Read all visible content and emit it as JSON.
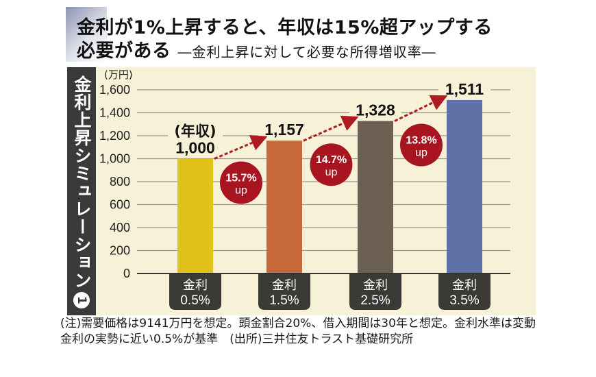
{
  "header": {
    "title_main_line1": "金利が1%上昇すると、年収は15%超アップする",
    "title_main_line2": "必要がある",
    "title_sub": "―金利上昇に対して必要な所得増収率―"
  },
  "side_label": {
    "text": "金利上昇シミュレーション",
    "number": "1"
  },
  "chart_data": {
    "type": "bar",
    "title": "金利上昇シミュレーション",
    "ylabel": "(万円)",
    "ylim": [
      0,
      1600
    ],
    "yticks": [
      0,
      200,
      400,
      600,
      800,
      1000,
      1200,
      1400,
      1600
    ],
    "ytick_labels": [
      "0",
      "200",
      "400",
      "600",
      "800",
      "1,000",
      "1,200",
      "1,400",
      "1,600"
    ],
    "grid": true,
    "categories": [
      {
        "line1": "金利",
        "line2": "0.5%"
      },
      {
        "line1": "金利",
        "line2": "1.5%"
      },
      {
        "line1": "金利",
        "line2": "2.5%"
      },
      {
        "line1": "金利",
        "line2": "3.5%"
      }
    ],
    "values": [
      1000,
      1157,
      1328,
      1511
    ],
    "value_labels": [
      "1,000",
      "1,157",
      "1,328",
      "1,511"
    ],
    "first_bar_caption": "(年収)",
    "bar_colors": [
      "#e0c21a",
      "#c96a3c",
      "#6b5f52",
      "#5f72a8"
    ],
    "increases": [
      {
        "pct": "15.7%",
        "word": "up"
      },
      {
        "pct": "14.7%",
        "word": "up"
      },
      {
        "pct": "13.8%",
        "word": "up"
      }
    ],
    "badge_color": "#a8141f",
    "arrow_color": "#b01a22"
  },
  "note": {
    "text": "(注)需要価格は9141万円を想定。頭金割合20%、借入期間は30年と想定。金利水準は変動金利の実勢に近い0.5%が基準　(出所)三井住友トラスト基礎研究所"
  }
}
